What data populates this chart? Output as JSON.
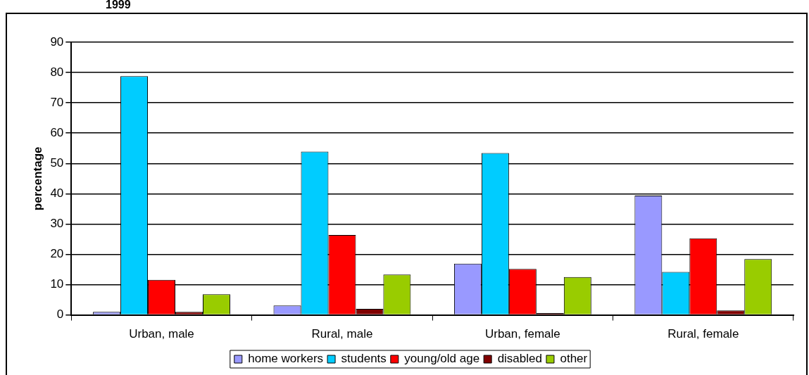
{
  "chart_data": {
    "type": "bar",
    "title": "1999",
    "ylabel": "percentage",
    "categories": [
      "Urban, male",
      "Rural, male",
      "Urban, female",
      "Rural, female"
    ],
    "series": [
      {
        "name": "home workers",
        "color": "#9999ff",
        "values": [
          1,
          3.1,
          16.9,
          39.4
        ]
      },
      {
        "name": "students",
        "color": "#00ccff",
        "values": [
          78.8,
          53.9,
          53.4,
          14.2
        ]
      },
      {
        "name": "young/old age",
        "color": "#ff0000",
        "values": [
          11.6,
          26.4,
          15.2,
          25.3
        ]
      },
      {
        "name": "disabled",
        "color": "#800000",
        "values": [
          1,
          2,
          0.6,
          1.5
        ]
      },
      {
        "name": "other",
        "color": "#99cc00",
        "values": [
          6.8,
          13.3,
          12.5,
          18.4
        ]
      }
    ],
    "ylim": [
      0,
      90
    ],
    "yticks": [
      0,
      10,
      20,
      30,
      40,
      50,
      60,
      70,
      80,
      90
    ],
    "grid": "y",
    "legend": "bottom"
  }
}
